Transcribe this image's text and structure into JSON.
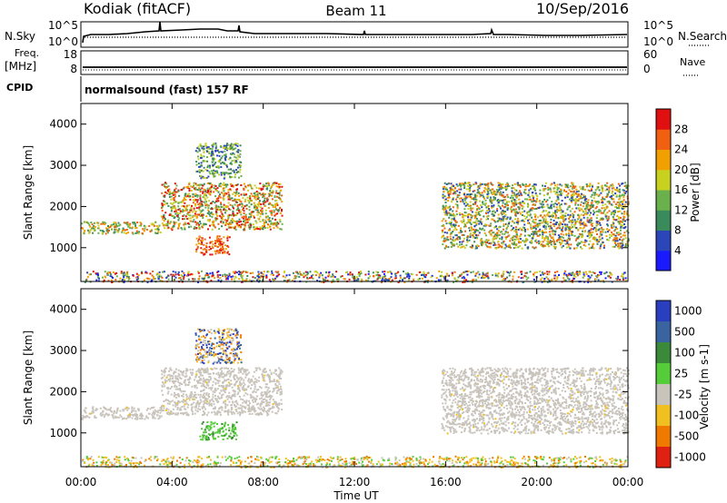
{
  "header": {
    "site": "Kodiak (fitACF)",
    "beam": "Beam 11",
    "date": "10/Sep/2016"
  },
  "left_labels": {
    "nsky": "N.Sky",
    "freq": "Freq.",
    "mhz": "[MHz]",
    "cpid": "CPID"
  },
  "right_labels": {
    "nsearch": "N.Search",
    "nave": "Nave"
  },
  "colors": {
    "power": [
      "#1a1aff",
      "#2b46b8",
      "#3b8a5c",
      "#6ab04c",
      "#c8d020",
      "#f0a000",
      "#f06010",
      "#e01010"
    ],
    "velocity": [
      "#2a3fc0",
      "#3a64a0",
      "#3a8a3a",
      "#55cc3a",
      "#c8c4bc",
      "#f0c020",
      "#f07a00",
      "#e02010"
    ],
    "gray_scatter": "#c8c4bc"
  },
  "chart_data": [
    {
      "type": "line",
      "title": "",
      "ylabel": "N.Sky",
      "y2label": "N.Search",
      "ytick_labels": [
        "10^5",
        "10^0"
      ],
      "y2tick_labels": [
        "10^5",
        "10^0"
      ]
    },
    {
      "type": "line",
      "ylabel": "Freq. [MHz]",
      "y2label": "Nave",
      "yticks": [
        8,
        18
      ],
      "y2ticks": [
        0,
        60
      ],
      "series": [
        {
          "name": "Freq.",
          "values": [
            [
              0,
              8.0
            ],
            [
              24,
              8.0
            ]
          ]
        },
        {
          "name": "Nave",
          "values": [
            [
              0,
              1
            ],
            [
              24,
              1
            ]
          ]
        }
      ]
    },
    {
      "type": "table",
      "label": "CPID",
      "text": "normalsound (fast) 157 RF"
    },
    {
      "type": "heatmap",
      "ylabel": "Slant Range [km]",
      "yticks": [
        1000,
        2000,
        3000,
        4000
      ],
      "ylim": [
        180,
        4500
      ],
      "colorbar_label": "Power [dB]",
      "colorbar_ticks": [
        4,
        8,
        12,
        16,
        20,
        24,
        28
      ],
      "bands": [
        {
          "t": [
            0,
            3.5
          ],
          "r": [
            1350,
            1650
          ],
          "level": [
            12,
            24
          ]
        },
        {
          "t": [
            3.5,
            8.8
          ],
          "r": [
            1450,
            2600
          ],
          "level": [
            8,
            28
          ]
        },
        {
          "t": [
            5.0,
            6.5
          ],
          "r": [
            850,
            1300
          ],
          "level": [
            16,
            28
          ]
        },
        {
          "t": [
            5.0,
            7.0
          ],
          "r": [
            2700,
            3550
          ],
          "level": [
            4,
            16
          ]
        },
        {
          "t": [
            15.8,
            24
          ],
          "r": [
            1000,
            2600
          ],
          "level": [
            8,
            28
          ]
        },
        {
          "t": [
            0,
            24
          ],
          "r": [
            180,
            450
          ],
          "level": [
            0,
            28
          ]
        }
      ]
    },
    {
      "type": "heatmap",
      "ylabel": "Slant Range [km]",
      "yticks": [
        1000,
        2000,
        3000,
        4000
      ],
      "ylim": [
        180,
        4500
      ],
      "colorbar_label": "Velocity [m s-1]",
      "colorbar_ticks": [
        1000,
        500,
        100,
        25,
        -25,
        -100,
        -500,
        -1000
      ],
      "bands": [
        {
          "t": [
            0,
            3.5
          ],
          "r": [
            1350,
            1650
          ],
          "level": [
            -25,
            25
          ]
        },
        {
          "t": [
            3.5,
            8.8
          ],
          "r": [
            1450,
            2600
          ],
          "level": [
            -25,
            25
          ]
        },
        {
          "t": [
            5.2,
            6.8
          ],
          "r": [
            850,
            1300
          ],
          "level": [
            25,
            100
          ]
        },
        {
          "t": [
            5.0,
            7.0
          ],
          "r": [
            2700,
            3550
          ],
          "level": [
            -500,
            500
          ]
        },
        {
          "t": [
            15.8,
            24
          ],
          "r": [
            1000,
            2600
          ],
          "level": [
            -25,
            25
          ]
        },
        {
          "t": [
            0,
            24
          ],
          "r": [
            180,
            450
          ],
          "level": [
            -100,
            100
          ]
        }
      ]
    }
  ],
  "x_axis": {
    "label": "Time UT",
    "xlim": [
      0,
      24
    ],
    "tick_labels": [
      "00:00",
      "04:00",
      "08:00",
      "12:00",
      "16:00",
      "20:00",
      "00:00"
    ]
  }
}
